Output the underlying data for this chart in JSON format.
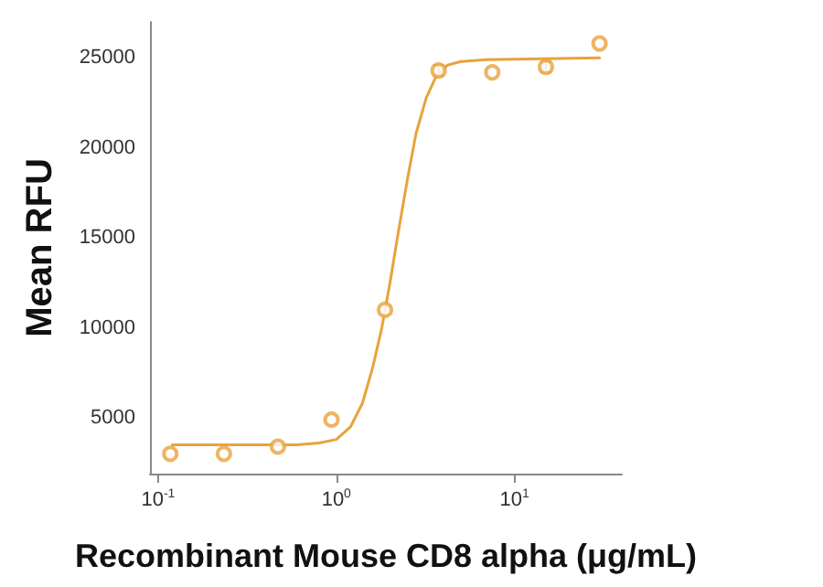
{
  "chart_data": {
    "type": "scatter",
    "xlabel": "Recombinant Mouse CD8 alpha (μg/mL)",
    "ylabel": "Mean RFU",
    "log": "x",
    "xlim": [
      0.09,
      40
    ],
    "ylim": [
      1900,
      27000
    ],
    "xticks": [
      {
        "value": 0.1,
        "label": "10$^{-1}$"
      },
      {
        "value": 1,
        "label": "10$^{0}$"
      },
      {
        "value": 10,
        "label": "10$^{1}$"
      }
    ],
    "yticks": [
      5000,
      10000,
      15000,
      20000,
      25000
    ],
    "grid": false,
    "marker": "circle",
    "series": [
      {
        "color": "#e8a33d",
        "x": [
          0.117,
          0.234,
          0.47,
          0.94,
          1.875,
          3.75,
          7.5,
          15,
          30
        ],
        "values": [
          3000,
          3000,
          3400,
          4900,
          11000,
          24300,
          24200,
          24500,
          25800
        ],
        "errors": [
          null,
          null,
          null,
          null,
          null,
          300,
          null,
          300,
          null
        ]
      },
      {
        "type": "line",
        "color": "#e8a33d",
        "marker": "none",
        "line_style": "solid",
        "x": [
          0.12,
          0.3,
          0.6,
          0.8,
          1.0,
          1.2,
          1.4,
          1.6,
          1.8,
          2.0,
          2.2,
          2.5,
          2.8,
          3.2,
          3.6,
          4.2,
          5,
          7,
          30
        ],
        "values": [
          3500,
          3500,
          3500,
          3600,
          3800,
          4500,
          5800,
          7800,
          10000,
          12500,
          15000,
          18200,
          20800,
          22800,
          23900,
          24600,
          24800,
          24900,
          25000
        ]
      }
    ]
  }
}
